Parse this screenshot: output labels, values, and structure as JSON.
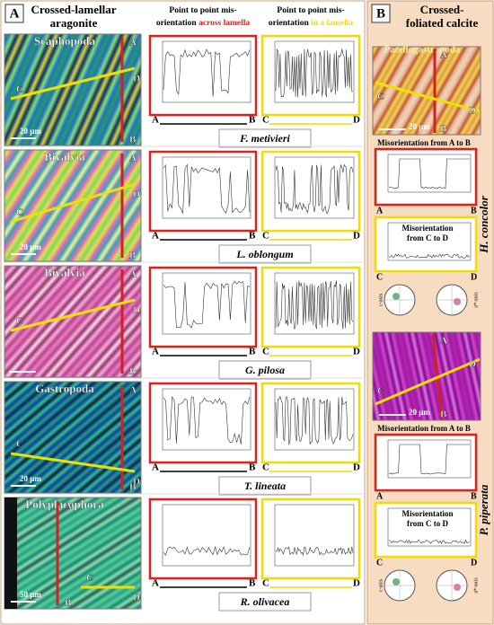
{
  "points": [
    "A",
    "B",
    "C",
    "D"
  ],
  "panel_a": {
    "label": "A",
    "title_lines": [
      "Crossed-lamellar",
      "aragonite"
    ],
    "columns": [
      {
        "lines": [
          "Point to point mis-",
          "orientation "
        ],
        "highlight": "across lamella"
      },
      {
        "lines": [
          "Point to point mis-",
          "orientation "
        ],
        "highlight": "in a lamella"
      }
    ],
    "rows": [
      {
        "taxon": "Scaphopoda",
        "species": "F. metivieri",
        "scale": "20 µm"
      },
      {
        "taxon": "Bivalvia",
        "species": "L. oblongum",
        "scale": "20 µm"
      },
      {
        "taxon": "Bivalvia",
        "species": "G. pilosa",
        "scale": null
      },
      {
        "taxon": "Gastropoda",
        "species": "T. lineata",
        "scale": "20 µm"
      },
      {
        "taxon": "Polyplacophora",
        "species": "R. olivacea",
        "scale": "50 µm"
      }
    ]
  },
  "panel_b": {
    "label": "B",
    "title_lines": [
      "Crossed-",
      "foliated calcite"
    ],
    "taxon": "Patellogastropoda",
    "sections": [
      {
        "species": "H. concolor",
        "scale": "20 µm",
        "ab": "Misorientation  from A to B",
        "cd_lines": [
          "Misorientation",
          "from  C to D"
        ],
        "axes": [
          "c-axis",
          "a*-axis"
        ]
      },
      {
        "species": "P. piperata",
        "scale": "20 µm",
        "ab": "Misorientation  from A to B",
        "cd_lines": [
          "Misorientation",
          "from  C to D"
        ],
        "axes": [
          "c-axis",
          "a*-axis"
        ]
      }
    ]
  }
}
